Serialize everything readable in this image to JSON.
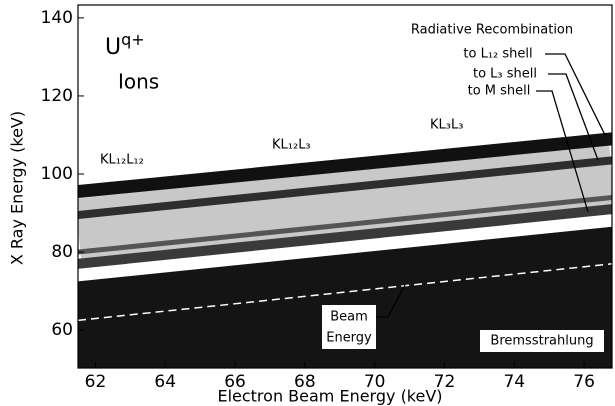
{
  "chart_data": {
    "type": "line",
    "x_label": "Electron Beam Energy (keV)",
    "y_label": "X Ray Energy (keV)",
    "xlim": [
      61.5,
      76.8
    ],
    "xticks": [
      62,
      64,
      66,
      68,
      70,
      72,
      74,
      76
    ],
    "ylim": [
      50.3,
      143.3
    ],
    "yticks": [
      60,
      80,
      100,
      120,
      140
    ],
    "x": [
      61.5,
      76.8
    ],
    "series": [
      {
        "color": "#c8c8c8",
        "values": [
          86,
          100
        ],
        "linewidth": 60
      },
      {
        "color": "#141414",
        "values": [
          72.5,
          86.5
        ],
        "fill": true
      },
      {
        "color": "#3a3a3a",
        "values": [
          77,
          91
        ],
        "linewidth": 10
      },
      {
        "color": "#555555",
        "values": [
          80,
          94
        ],
        "linewidth": 5
      },
      {
        "color": "#2e2e2e",
        "values": [
          89.5,
          103.5
        ],
        "linewidth": 8
      },
      {
        "color": "#111111",
        "values": [
          95.5,
          109
        ],
        "linewidth": 13
      },
      {
        "color": "#ffffff",
        "values": [
          62.5,
          77
        ],
        "linewidth": 1.5,
        "dashed": true
      }
    ],
    "annotations": {
      "ion_base": "U",
      "ion_sup": "q+",
      "ions": "Ions",
      "kl12l12": "KL₁₂L₁₂",
      "kl12l3": "KL₁₂L₃",
      "kl3l3": "KL₃L₃",
      "rr": "Radiative Recombination",
      "rr_l12": "to L₁₂ shell",
      "rr_l3": "to L₃ shell",
      "rr_m": "to M shell",
      "beam1": "Beam",
      "beam2": "Energy",
      "brems": "Bremsstrahlung"
    }
  }
}
